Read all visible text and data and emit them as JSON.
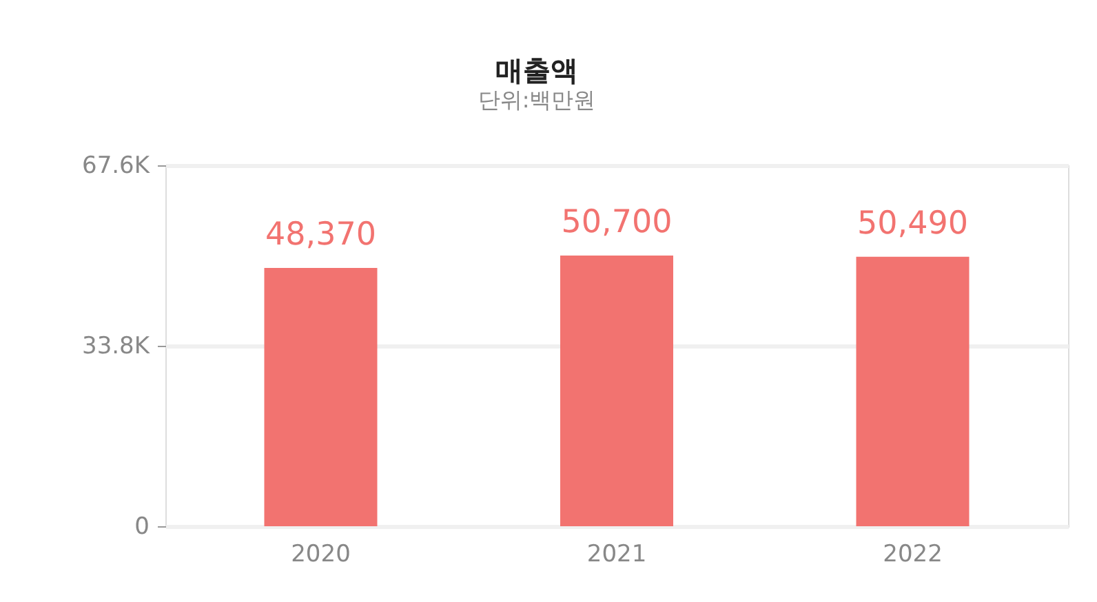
{
  "chart_data": {
    "type": "bar",
    "title": "매출액",
    "subtitle": "단위:백만원",
    "categories": [
      "2020",
      "2021",
      "2022"
    ],
    "values": [
      48370,
      50700,
      50490
    ],
    "color": "#f27370",
    "ylim": [
      0,
      67600
    ],
    "yticks": [
      0,
      {
        "value": 33800,
        "label": "33.8K"
      },
      {
        "value": 67600,
        "label": "67.6K"
      }
    ],
    "value_labels": [
      "48,370",
      "50,700",
      "50,490"
    ],
    "grid": "y"
  }
}
